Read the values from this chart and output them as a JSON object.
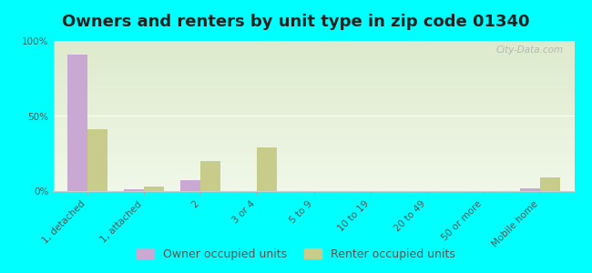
{
  "title": "Owners and renters by unit type in zip code 01340",
  "categories": [
    "1, detached",
    "1, attached",
    "2",
    "3 or 4",
    "5 to 9",
    "10 to 19",
    "20 to 49",
    "50 or more",
    "Mobile home"
  ],
  "owner_values": [
    91,
    1,
    7,
    0,
    0,
    0,
    0,
    0,
    2
  ],
  "renter_values": [
    41,
    3,
    20,
    29,
    0,
    0,
    0,
    0,
    9
  ],
  "owner_color": "#c9a8d4",
  "renter_color": "#c8cc8a",
  "background_top": "#ddeacc",
  "background_bottom": "#f0f7e8",
  "outer_bg": "#00ffff",
  "ylim": [
    0,
    100
  ],
  "yticks": [
    0,
    50,
    100
  ],
  "ytick_labels": [
    "0%",
    "50%",
    "100%"
  ],
  "bar_width": 0.35,
  "legend_owner": "Owner occupied units",
  "legend_renter": "Renter occupied units",
  "title_fontsize": 13,
  "tick_fontsize": 7.5,
  "legend_fontsize": 9
}
